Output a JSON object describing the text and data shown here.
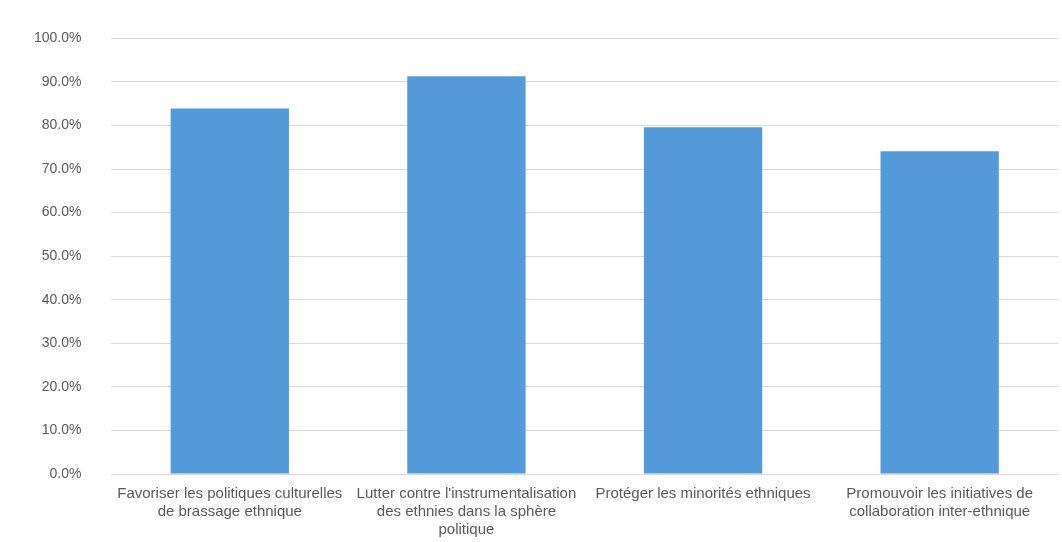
{
  "chart_data": {
    "type": "bar",
    "categories": [
      "Favoriser les politiques culturelles de brassage ethnique",
      "Lutter contre l'instrumentalisation des ethnies dans la sphère politique",
      "Protéger les minorités ethniques",
      "Promouvoir les initiatives de collaboration inter-ethnique"
    ],
    "values": [
      83.9,
      91.3,
      79.6,
      74.1
    ],
    "color": "#559ad8",
    "ylim": [
      0,
      100
    ],
    "yticks": [
      {
        "value": 0,
        "label": "0.0%"
      },
      {
        "value": 10,
        "label": "10.0%"
      },
      {
        "value": 20,
        "label": "20.0%"
      },
      {
        "value": 30,
        "label": "30.0%"
      },
      {
        "value": 40,
        "label": "40.0%"
      },
      {
        "value": 50,
        "label": "50.0%"
      },
      {
        "value": 60,
        "label": "60.0%"
      },
      {
        "value": 70,
        "label": "70.0%"
      },
      {
        "value": 80,
        "label": "80.0%"
      },
      {
        "value": 90,
        "label": "90.0%"
      },
      {
        "value": 100,
        "label": "100.0%"
      }
    ],
    "grid": "y",
    "legend": false
  }
}
